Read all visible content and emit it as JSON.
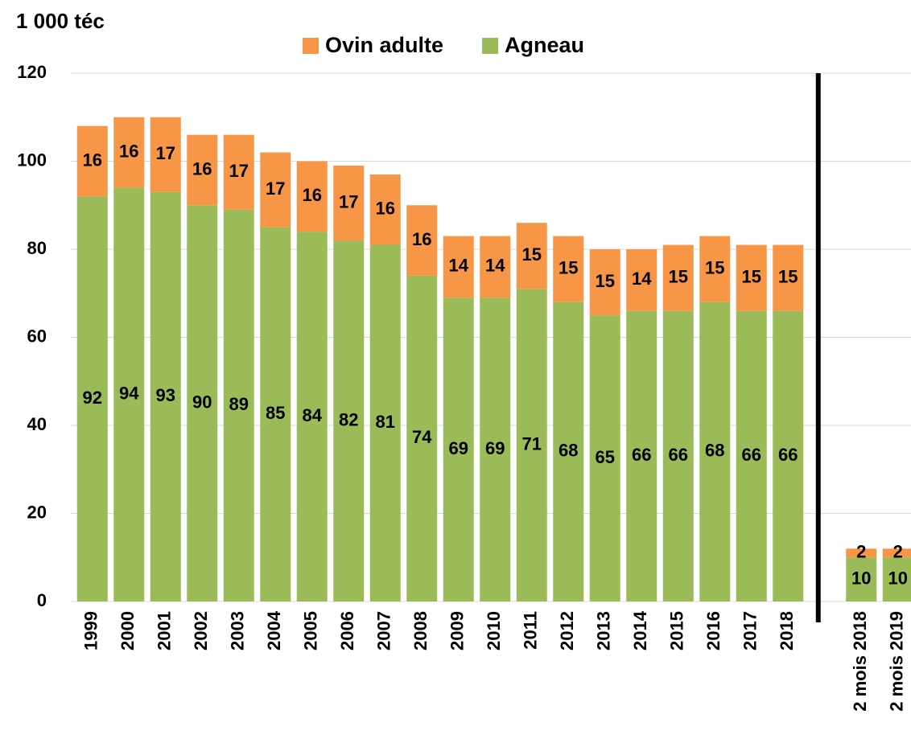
{
  "chart_data": {
    "type": "bar",
    "stacked": true,
    "y_label": "1 000 téc",
    "categories": [
      "1999",
      "2000",
      "2001",
      "2002",
      "2003",
      "2004",
      "2005",
      "2006",
      "2007",
      "2008",
      "2009",
      "2010",
      "2011",
      "2012",
      "2013",
      "2014",
      "2015",
      "2016",
      "2017",
      "2018",
      null,
      "2 mois 2018",
      "2 mois 2019"
    ],
    "series": [
      {
        "name": "Agneau",
        "color": "#9bbb59",
        "values": [
          92,
          94,
          93,
          90,
          89,
          85,
          84,
          82,
          81,
          74,
          69,
          69,
          71,
          68,
          65,
          66,
          66,
          68,
          66,
          66,
          null,
          10,
          10
        ]
      },
      {
        "name": "Ovin adulte",
        "color": "#f79646",
        "values": [
          16,
          16,
          17,
          16,
          17,
          17,
          16,
          17,
          16,
          16,
          14,
          14,
          15,
          15,
          15,
          14,
          15,
          15,
          15,
          15,
          null,
          2,
          2
        ]
      }
    ],
    "legend_order": [
      1,
      0
    ],
    "ylim": [
      0,
      120
    ],
    "yticks": [
      0,
      20,
      40,
      60,
      80,
      100,
      120
    ],
    "grid": true
  }
}
